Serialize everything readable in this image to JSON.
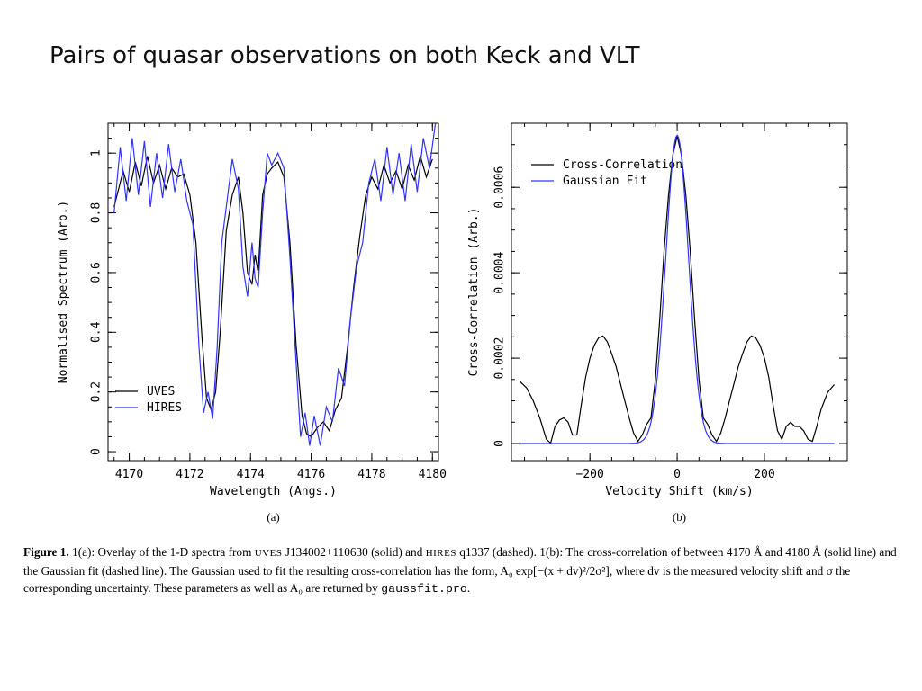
{
  "slide": {
    "title": "Pairs of quasar observations on both Keck and VLT"
  },
  "chart_data": [
    {
      "type": "line",
      "panel_label": "(a)",
      "xlabel": "Wavelength (Angs.)",
      "ylabel": "Normalised Spectrum (Arb.)",
      "xlim": [
        4169.3,
        4180.2
      ],
      "ylim": [
        -0.03,
        1.1
      ],
      "x_ticks": [
        "4170",
        "4172",
        "4174",
        "4176",
        "4178",
        "4180"
      ],
      "y_ticks": [
        "0",
        "0.2",
        "0.4",
        "0.6",
        "0.8",
        "1"
      ],
      "legend_position": "bottom-left",
      "series": [
        {
          "name": "UVES",
          "color": "#000000",
          "x": [
            4169.5,
            4169.8,
            4170.0,
            4170.2,
            4170.4,
            4170.6,
            4170.8,
            4171.0,
            4171.2,
            4171.4,
            4171.6,
            4171.8,
            4172.0,
            4172.2,
            4172.4,
            4172.55,
            4172.7,
            4172.85,
            4173.0,
            4173.2,
            4173.4,
            4173.6,
            4173.75,
            4173.9,
            4174.05,
            4174.15,
            4174.25,
            4174.4,
            4174.55,
            4174.7,
            4174.9,
            4175.1,
            4175.3,
            4175.5,
            4175.7,
            4175.85,
            4176.0,
            4176.2,
            4176.4,
            4176.6,
            4176.8,
            4177.0,
            4177.2,
            4177.4,
            4177.6,
            4177.8,
            4178.0,
            4178.2,
            4178.4,
            4178.6,
            4178.8,
            4179.0,
            4179.2,
            4179.4,
            4179.6,
            4179.8,
            4180.0
          ],
          "values": [
            0.82,
            0.94,
            0.87,
            0.97,
            0.89,
            0.99,
            0.9,
            0.96,
            0.88,
            0.95,
            0.92,
            0.93,
            0.86,
            0.7,
            0.38,
            0.18,
            0.14,
            0.2,
            0.4,
            0.74,
            0.86,
            0.92,
            0.8,
            0.6,
            0.56,
            0.66,
            0.6,
            0.86,
            0.93,
            0.95,
            0.97,
            0.92,
            0.7,
            0.36,
            0.12,
            0.06,
            0.05,
            0.08,
            0.1,
            0.07,
            0.14,
            0.18,
            0.35,
            0.55,
            0.72,
            0.86,
            0.92,
            0.88,
            0.96,
            0.9,
            0.94,
            0.88,
            0.96,
            0.91,
            0.99,
            0.92,
            0.98
          ]
        },
        {
          "name": "HIRES",
          "color": "#3333ff",
          "x": [
            4169.5,
            4169.7,
            4169.9,
            4170.1,
            4170.3,
            4170.5,
            4170.7,
            4170.9,
            4171.1,
            4171.3,
            4171.5,
            4171.7,
            4171.9,
            4172.1,
            4172.3,
            4172.45,
            4172.6,
            4172.75,
            4172.9,
            4173.05,
            4173.2,
            4173.4,
            4173.6,
            4173.75,
            4173.9,
            4174.05,
            4174.15,
            4174.25,
            4174.4,
            4174.55,
            4174.7,
            4174.9,
            4175.1,
            4175.3,
            4175.5,
            4175.65,
            4175.8,
            4175.95,
            4176.1,
            4176.3,
            4176.5,
            4176.7,
            4176.9,
            4177.1,
            4177.3,
            4177.5,
            4177.7,
            4177.9,
            4178.1,
            4178.3,
            4178.5,
            4178.7,
            4178.9,
            4179.1,
            4179.3,
            4179.5,
            4179.7,
            4179.9,
            4180.1
          ],
          "values": [
            0.8,
            1.02,
            0.84,
            1.05,
            0.86,
            1.04,
            0.82,
            1.0,
            0.85,
            1.03,
            0.87,
            0.98,
            0.84,
            0.76,
            0.35,
            0.13,
            0.2,
            0.11,
            0.35,
            0.7,
            0.82,
            0.98,
            0.88,
            0.62,
            0.52,
            0.7,
            0.58,
            0.55,
            0.8,
            1.0,
            0.96,
            1.0,
            0.95,
            0.65,
            0.3,
            0.05,
            0.13,
            0.02,
            0.12,
            0.02,
            0.15,
            0.1,
            0.28,
            0.22,
            0.45,
            0.62,
            0.7,
            0.9,
            0.98,
            0.84,
            1.02,
            0.86,
            1.0,
            0.84,
            1.03,
            0.87,
            1.05,
            0.95,
            1.1
          ]
        }
      ]
    },
    {
      "type": "line",
      "panel_label": "(b)",
      "xlabel": "Velocity Shift (km/s)",
      "ylabel": "Cross-Correlation (Arb.)",
      "xlim": [
        -380,
        390
      ],
      "ylim": [
        -4e-05,
        0.00075
      ],
      "x_ticks": [
        "−200",
        "0",
        "200"
      ],
      "y_ticks": [
        "0",
        "0.0002",
        "0.0004",
        "0.0006"
      ],
      "legend_position": "top-left",
      "series": [
        {
          "name": "Cross-Correlation",
          "color": "#000000",
          "x": [
            -360,
            -345,
            -330,
            -315,
            -300,
            -290,
            -280,
            -270,
            -260,
            -250,
            -240,
            -230,
            -220,
            -210,
            -200,
            -190,
            -180,
            -170,
            -160,
            -150,
            -140,
            -130,
            -120,
            -110,
            -100,
            -90,
            -80,
            -70,
            -60,
            -50,
            -40,
            -30,
            -20,
            -10,
            0,
            10,
            20,
            30,
            40,
            50,
            60,
            70,
            80,
            90,
            100,
            110,
            120,
            130,
            140,
            150,
            160,
            170,
            180,
            190,
            200,
            210,
            220,
            230,
            240,
            250,
            260,
            270,
            280,
            290,
            300,
            310,
            320,
            330,
            345,
            360
          ],
          "values": [
            0.000145,
            0.00013,
            0.0001,
            6e-05,
            1e-05,
            1e-06,
            4e-05,
            5.5e-05,
            6e-05,
            5e-05,
            2e-05,
            2e-05,
            9e-05,
            0.000155,
            0.0002,
            0.00023,
            0.000248,
            0.000252,
            0.000238,
            0.00021,
            0.00018,
            0.00014,
            0.0001,
            6e-05,
            2.5e-05,
            5e-06,
            2e-05,
            4.5e-05,
            6e-05,
            0.00015,
            0.00029,
            0.00045,
            0.00058,
            0.000675,
            0.00072,
            0.000675,
            0.00058,
            0.00045,
            0.00029,
            0.00015,
            6e-05,
            4.5e-05,
            2e-05,
            5e-06,
            2.5e-05,
            6e-05,
            0.0001,
            0.00014,
            0.00018,
            0.00021,
            0.000238,
            0.000252,
            0.000248,
            0.00023,
            0.0002,
            0.000155,
            9e-05,
            3e-05,
            1e-05,
            4e-05,
            5e-05,
            4e-05,
            4e-05,
            3e-05,
            1e-05,
            5e-06,
            4e-05,
            8e-05,
            0.00012,
            0.000138
          ]
        },
        {
          "name": "Gaussian Fit",
          "color": "#3333ff",
          "gaussian": {
            "amplitude": 0.000722,
            "center": 0,
            "sigma": 26
          },
          "x_range": [
            -360,
            360
          ]
        }
      ]
    }
  ],
  "caption": {
    "label": "Figure 1.",
    "part1": " 1(a): Overlay of the 1-D spectra from ",
    "uves": "UVES",
    "part2": " J134002+110630 (solid) and ",
    "hires": "HIRES",
    "part3": " q1337 (dashed). 1(b): The cross-correlation of between 4170 Å and 4180 Å (solid line) and the Gaussian fit (dashed line). The Gaussian used to fit the resulting cross-correlation has the form, A₀ exp[−(x + dv)²/2σ²], where dv is the measured velocity shift and σ the corresponding uncertainty. These parameters as well as A₀ are returned by ",
    "code": "gaussfit.pro",
    "part4": "."
  }
}
